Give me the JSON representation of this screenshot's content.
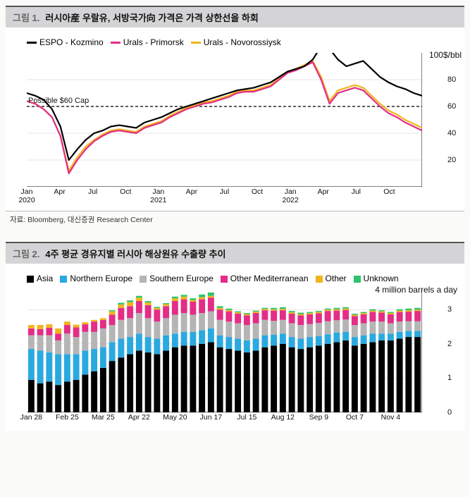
{
  "fig1": {
    "label": "그림 1.",
    "title": "러시아産 우랄유, 서방국가向 가격은 가격 상한선을 하회",
    "legend": [
      {
        "name": "ESPO - Kozmino",
        "color": "#000000"
      },
      {
        "name": "Urals - Primorsk",
        "color": "#e32d87"
      },
      {
        "name": "Urals - Novorossiysk",
        "color": "#f1b41c"
      }
    ],
    "cap_label": "Possible $60 Cap",
    "cap_value": 60,
    "y_unit": "100$/bbl",
    "ylim": [
      0,
      100
    ],
    "yticks": [
      20,
      40,
      60,
      80
    ],
    "grid_color": "#aaaaaa",
    "background": "#ffffff",
    "x_labels": [
      "Jan\n2020",
      "Apr",
      "Jul",
      "Oct",
      "Jan\n2021",
      "Apr",
      "Jul",
      "Oct",
      "Jan\n2022",
      "Apr",
      "Jul",
      "Oct"
    ],
    "x_positions": [
      0,
      0.083,
      0.167,
      0.25,
      0.333,
      0.417,
      0.5,
      0.583,
      0.667,
      0.75,
      0.833,
      0.917
    ],
    "series": {
      "espo": [
        70,
        68,
        65,
        58,
        45,
        20,
        28,
        35,
        40,
        42,
        45,
        46,
        45,
        44,
        48,
        50,
        52,
        55,
        58,
        60,
        62,
        64,
        66,
        68,
        70,
        72,
        73,
        74,
        76,
        78,
        82,
        86,
        88,
        90,
        95,
        105,
        103,
        95,
        90,
        92,
        94,
        88,
        82,
        78,
        75,
        73,
        70,
        68
      ],
      "primorsk": [
        64,
        62,
        58,
        52,
        38,
        10,
        20,
        28,
        34,
        38,
        41,
        42,
        41,
        40,
        44,
        46,
        48,
        52,
        55,
        58,
        60,
        62,
        63,
        65,
        67,
        70,
        71,
        71,
        73,
        75,
        80,
        85,
        87,
        90,
        93,
        80,
        62,
        70,
        72,
        74,
        72,
        66,
        60,
        55,
        52,
        48,
        45,
        42
      ],
      "novo": [
        64,
        62,
        58,
        52,
        38,
        12,
        22,
        30,
        35,
        39,
        42,
        43,
        42,
        41,
        45,
        47,
        49,
        53,
        56,
        59,
        61,
        63,
        64,
        66,
        68,
        71,
        72,
        72,
        74,
        76,
        81,
        86,
        88,
        91,
        94,
        82,
        64,
        72,
        74,
        76,
        74,
        68,
        62,
        57,
        54,
        50,
        47,
        44
      ]
    },
    "source": "자료: Bloomberg, 대신증권 Research Center"
  },
  "fig2": {
    "label": "그림 2.",
    "title": "4주 평균 경유지별 러시아 해상원유 수출량 추이",
    "legend": [
      {
        "name": "Asia",
        "color": "#000000"
      },
      {
        "name": "Northern Europe",
        "color": "#2aa9e0"
      },
      {
        "name": "Southern Europe",
        "color": "#b5b5b5"
      },
      {
        "name": "Other Mediterranean",
        "color": "#e32d87"
      },
      {
        "name": "Other",
        "color": "#f1b41c"
      },
      {
        "name": "Unknown",
        "color": "#2dc46c"
      }
    ],
    "y_unit": "4 million barrels a day",
    "ylim": [
      0,
      3.6
    ],
    "yticks": [
      0,
      1,
      2,
      3
    ],
    "grid_color": "#aaaaaa",
    "background": "#ffffff",
    "x_labels": [
      "Jan 28",
      "Feb 25",
      "Mar 25",
      "Apr 22",
      "May 20",
      "Jun 17",
      "Jul 15",
      "Aug 12",
      "Sep 9",
      "Oct 7",
      "Nov 4"
    ],
    "bar_width": 0.7,
    "bars": [
      {
        "asia": 0.95,
        "neur": 0.9,
        "seur": 0.4,
        "omed": 0.2,
        "other": 0.1,
        "unk": 0.0
      },
      {
        "asia": 0.85,
        "neur": 0.95,
        "seur": 0.45,
        "omed": 0.18,
        "other": 0.12,
        "unk": 0.0
      },
      {
        "asia": 0.9,
        "neur": 0.85,
        "seur": 0.5,
        "omed": 0.22,
        "other": 0.1,
        "unk": 0.0
      },
      {
        "asia": 0.8,
        "neur": 0.9,
        "seur": 0.4,
        "omed": 0.2,
        "other": 0.15,
        "unk": 0.0
      },
      {
        "asia": 0.9,
        "neur": 0.8,
        "seur": 0.6,
        "omed": 0.25,
        "other": 0.1,
        "unk": 0.0
      },
      {
        "asia": 0.95,
        "neur": 0.75,
        "seur": 0.5,
        "omed": 0.28,
        "other": 0.08,
        "unk": 0.0
      },
      {
        "asia": 1.1,
        "neur": 0.7,
        "seur": 0.55,
        "omed": 0.22,
        "other": 0.06,
        "unk": 0.0
      },
      {
        "asia": 1.2,
        "neur": 0.65,
        "seur": 0.5,
        "omed": 0.3,
        "other": 0.05,
        "unk": 0.0
      },
      {
        "asia": 1.3,
        "neur": 0.6,
        "seur": 0.55,
        "omed": 0.25,
        "other": 0.05,
        "unk": 0.0
      },
      {
        "asia": 1.5,
        "neur": 0.55,
        "seur": 0.5,
        "omed": 0.3,
        "other": 0.1,
        "unk": 0.03
      },
      {
        "asia": 1.6,
        "neur": 0.55,
        "seur": 0.55,
        "omed": 0.35,
        "other": 0.1,
        "unk": 0.05
      },
      {
        "asia": 1.7,
        "neur": 0.5,
        "seur": 0.55,
        "omed": 0.35,
        "other": 0.12,
        "unk": 0.05
      },
      {
        "asia": 1.8,
        "neur": 0.5,
        "seur": 0.6,
        "omed": 0.35,
        "other": 0.1,
        "unk": 0.05
      },
      {
        "asia": 1.75,
        "neur": 0.45,
        "seur": 0.55,
        "omed": 0.38,
        "other": 0.08,
        "unk": 0.04
      },
      {
        "asia": 1.7,
        "neur": 0.45,
        "seur": 0.5,
        "omed": 0.35,
        "other": 0.05,
        "unk": 0.03
      },
      {
        "asia": 1.8,
        "neur": 0.45,
        "seur": 0.5,
        "omed": 0.35,
        "other": 0.06,
        "unk": 0.03
      },
      {
        "asia": 1.9,
        "neur": 0.4,
        "seur": 0.55,
        "omed": 0.4,
        "other": 0.08,
        "unk": 0.05
      },
      {
        "asia": 1.95,
        "neur": 0.4,
        "seur": 0.55,
        "omed": 0.4,
        "other": 0.08,
        "unk": 0.05
      },
      {
        "asia": 1.95,
        "neur": 0.4,
        "seur": 0.5,
        "omed": 0.38,
        "other": 0.05,
        "unk": 0.05
      },
      {
        "asia": 2.0,
        "neur": 0.4,
        "seur": 0.5,
        "omed": 0.4,
        "other": 0.06,
        "unk": 0.08
      },
      {
        "asia": 2.05,
        "neur": 0.4,
        "seur": 0.5,
        "omed": 0.4,
        "other": 0.05,
        "unk": 0.1
      },
      {
        "asia": 1.9,
        "neur": 0.35,
        "seur": 0.45,
        "omed": 0.3,
        "other": 0.05,
        "unk": 0.05
      },
      {
        "asia": 1.85,
        "neur": 0.35,
        "seur": 0.45,
        "omed": 0.3,
        "other": 0.04,
        "unk": 0.04
      },
      {
        "asia": 1.8,
        "neur": 0.35,
        "seur": 0.45,
        "omed": 0.28,
        "other": 0.04,
        "unk": 0.03
      },
      {
        "asia": 1.75,
        "neur": 0.35,
        "seur": 0.45,
        "omed": 0.28,
        "other": 0.04,
        "unk": 0.03
      },
      {
        "asia": 1.8,
        "neur": 0.35,
        "seur": 0.45,
        "omed": 0.3,
        "other": 0.04,
        "unk": 0.03
      },
      {
        "asia": 1.9,
        "neur": 0.35,
        "seur": 0.45,
        "omed": 0.28,
        "other": 0.04,
        "unk": 0.03
      },
      {
        "asia": 1.95,
        "neur": 0.32,
        "seur": 0.4,
        "omed": 0.3,
        "other": 0.04,
        "unk": 0.04
      },
      {
        "asia": 2.0,
        "neur": 0.3,
        "seur": 0.4,
        "omed": 0.28,
        "other": 0.04,
        "unk": 0.05
      },
      {
        "asia": 1.9,
        "neur": 0.3,
        "seur": 0.4,
        "omed": 0.28,
        "other": 0.04,
        "unk": 0.04
      },
      {
        "asia": 1.85,
        "neur": 0.3,
        "seur": 0.4,
        "omed": 0.28,
        "other": 0.04,
        "unk": 0.04
      },
      {
        "asia": 1.9,
        "neur": 0.3,
        "seur": 0.38,
        "omed": 0.28,
        "other": 0.04,
        "unk": 0.03
      },
      {
        "asia": 1.95,
        "neur": 0.28,
        "seur": 0.38,
        "omed": 0.28,
        "other": 0.04,
        "unk": 0.03
      },
      {
        "asia": 2.0,
        "neur": 0.28,
        "seur": 0.38,
        "omed": 0.3,
        "other": 0.04,
        "unk": 0.03
      },
      {
        "asia": 2.05,
        "neur": 0.28,
        "seur": 0.36,
        "omed": 0.28,
        "other": 0.04,
        "unk": 0.04
      },
      {
        "asia": 2.1,
        "neur": 0.25,
        "seur": 0.36,
        "omed": 0.28,
        "other": 0.04,
        "unk": 0.04
      },
      {
        "asia": 1.95,
        "neur": 0.25,
        "seur": 0.35,
        "omed": 0.26,
        "other": 0.04,
        "unk": 0.03
      },
      {
        "asia": 2.0,
        "neur": 0.25,
        "seur": 0.35,
        "omed": 0.26,
        "other": 0.04,
        "unk": 0.03
      },
      {
        "asia": 2.05,
        "neur": 0.25,
        "seur": 0.35,
        "omed": 0.28,
        "other": 0.04,
        "unk": 0.04
      },
      {
        "asia": 2.1,
        "neur": 0.2,
        "seur": 0.35,
        "omed": 0.26,
        "other": 0.04,
        "unk": 0.03
      },
      {
        "asia": 2.1,
        "neur": 0.2,
        "seur": 0.3,
        "omed": 0.26,
        "other": 0.04,
        "unk": 0.03
      },
      {
        "asia": 2.15,
        "neur": 0.2,
        "seur": 0.3,
        "omed": 0.28,
        "other": 0.04,
        "unk": 0.04
      },
      {
        "asia": 2.2,
        "neur": 0.18,
        "seur": 0.28,
        "omed": 0.28,
        "other": 0.04,
        "unk": 0.05
      },
      {
        "asia": 2.2,
        "neur": 0.18,
        "seur": 0.28,
        "omed": 0.3,
        "other": 0.04,
        "unk": 0.05
      }
    ]
  }
}
